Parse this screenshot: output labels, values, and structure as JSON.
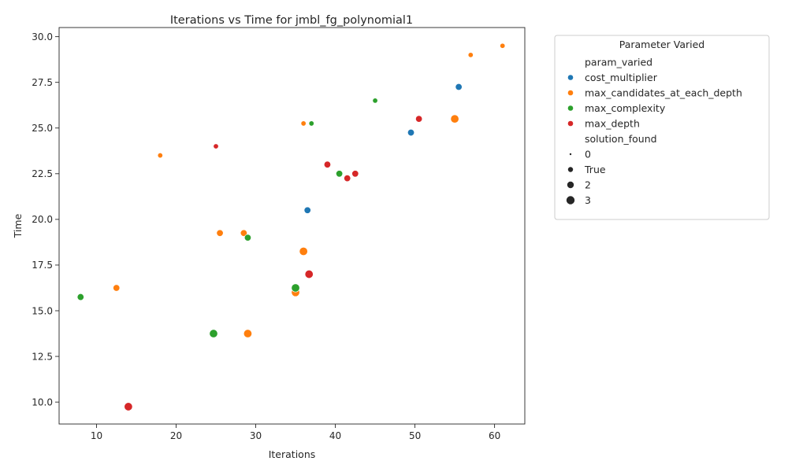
{
  "chart_data": {
    "type": "scatter",
    "title": "Iterations vs Time for jmbl_fg_polynomial1",
    "xlabel": "Iterations",
    "ylabel": "Time",
    "xlim": [
      5.3,
      63.8
    ],
    "ylim": [
      8.8,
      30.5
    ],
    "x_ticks": [
      10,
      20,
      30,
      40,
      50,
      60
    ],
    "y_ticks": [
      10.0,
      12.5,
      15.0,
      17.5,
      20.0,
      22.5,
      25.0,
      27.5,
      30.0
    ],
    "grid": false,
    "legend": {
      "title": "Parameter Varied",
      "placement": "outside-top-right",
      "hue_title": "param_varied",
      "size_title": "solution_found",
      "sizes": [
        {
          "label": "0",
          "size": 0
        },
        {
          "label": "True",
          "size": 1
        },
        {
          "label": "2",
          "size": 2
        },
        {
          "label": "3",
          "size": 3
        }
      ]
    },
    "series": [
      {
        "name": "cost_multiplier",
        "color": "#1f77b4",
        "points": [
          {
            "x": 36.5,
            "y": 20.5,
            "size": 2
          },
          {
            "x": 49.5,
            "y": 24.75,
            "size": 2
          },
          {
            "x": 55.5,
            "y": 27.25,
            "size": 2
          }
        ]
      },
      {
        "name": "max_candidates_at_each_depth",
        "color": "#ff7f0e",
        "points": [
          {
            "x": 12.5,
            "y": 16.25,
            "size": 2
          },
          {
            "x": 18.0,
            "y": 23.5,
            "size": 1
          },
          {
            "x": 25.5,
            "y": 19.25,
            "size": 2
          },
          {
            "x": 28.5,
            "y": 19.25,
            "size": 2
          },
          {
            "x": 29.0,
            "y": 13.75,
            "size": 3
          },
          {
            "x": 35.0,
            "y": 16.0,
            "size": 3
          },
          {
            "x": 36.0,
            "y": 18.25,
            "size": 3
          },
          {
            "x": 36.0,
            "y": 25.25,
            "size": 1
          },
          {
            "x": 55.0,
            "y": 25.5,
            "size": 3
          },
          {
            "x": 57.0,
            "y": 29.0,
            "size": 1
          },
          {
            "x": 61.0,
            "y": 29.5,
            "size": 1
          }
        ]
      },
      {
        "name": "max_complexity",
        "color": "#2ca02c",
        "points": [
          {
            "x": 8.0,
            "y": 15.75,
            "size": 2
          },
          {
            "x": 24.7,
            "y": 13.75,
            "size": 3
          },
          {
            "x": 29.0,
            "y": 19.0,
            "size": 2
          },
          {
            "x": 35.0,
            "y": 16.25,
            "size": 3
          },
          {
            "x": 37.0,
            "y": 25.25,
            "size": 1
          },
          {
            "x": 40.5,
            "y": 22.5,
            "size": 2
          },
          {
            "x": 45.0,
            "y": 26.5,
            "size": 1
          }
        ]
      },
      {
        "name": "max_depth",
        "color": "#d62728",
        "points": [
          {
            "x": 14.0,
            "y": 9.75,
            "size": 3
          },
          {
            "x": 25.0,
            "y": 24.0,
            "size": 1
          },
          {
            "x": 36.7,
            "y": 17.0,
            "size": 3
          },
          {
            "x": 39.0,
            "y": 23.0,
            "size": 2
          },
          {
            "x": 41.5,
            "y": 22.25,
            "size": 2
          },
          {
            "x": 42.5,
            "y": 22.5,
            "size": 2
          },
          {
            "x": 50.5,
            "y": 25.5,
            "size": 2
          }
        ]
      }
    ]
  }
}
